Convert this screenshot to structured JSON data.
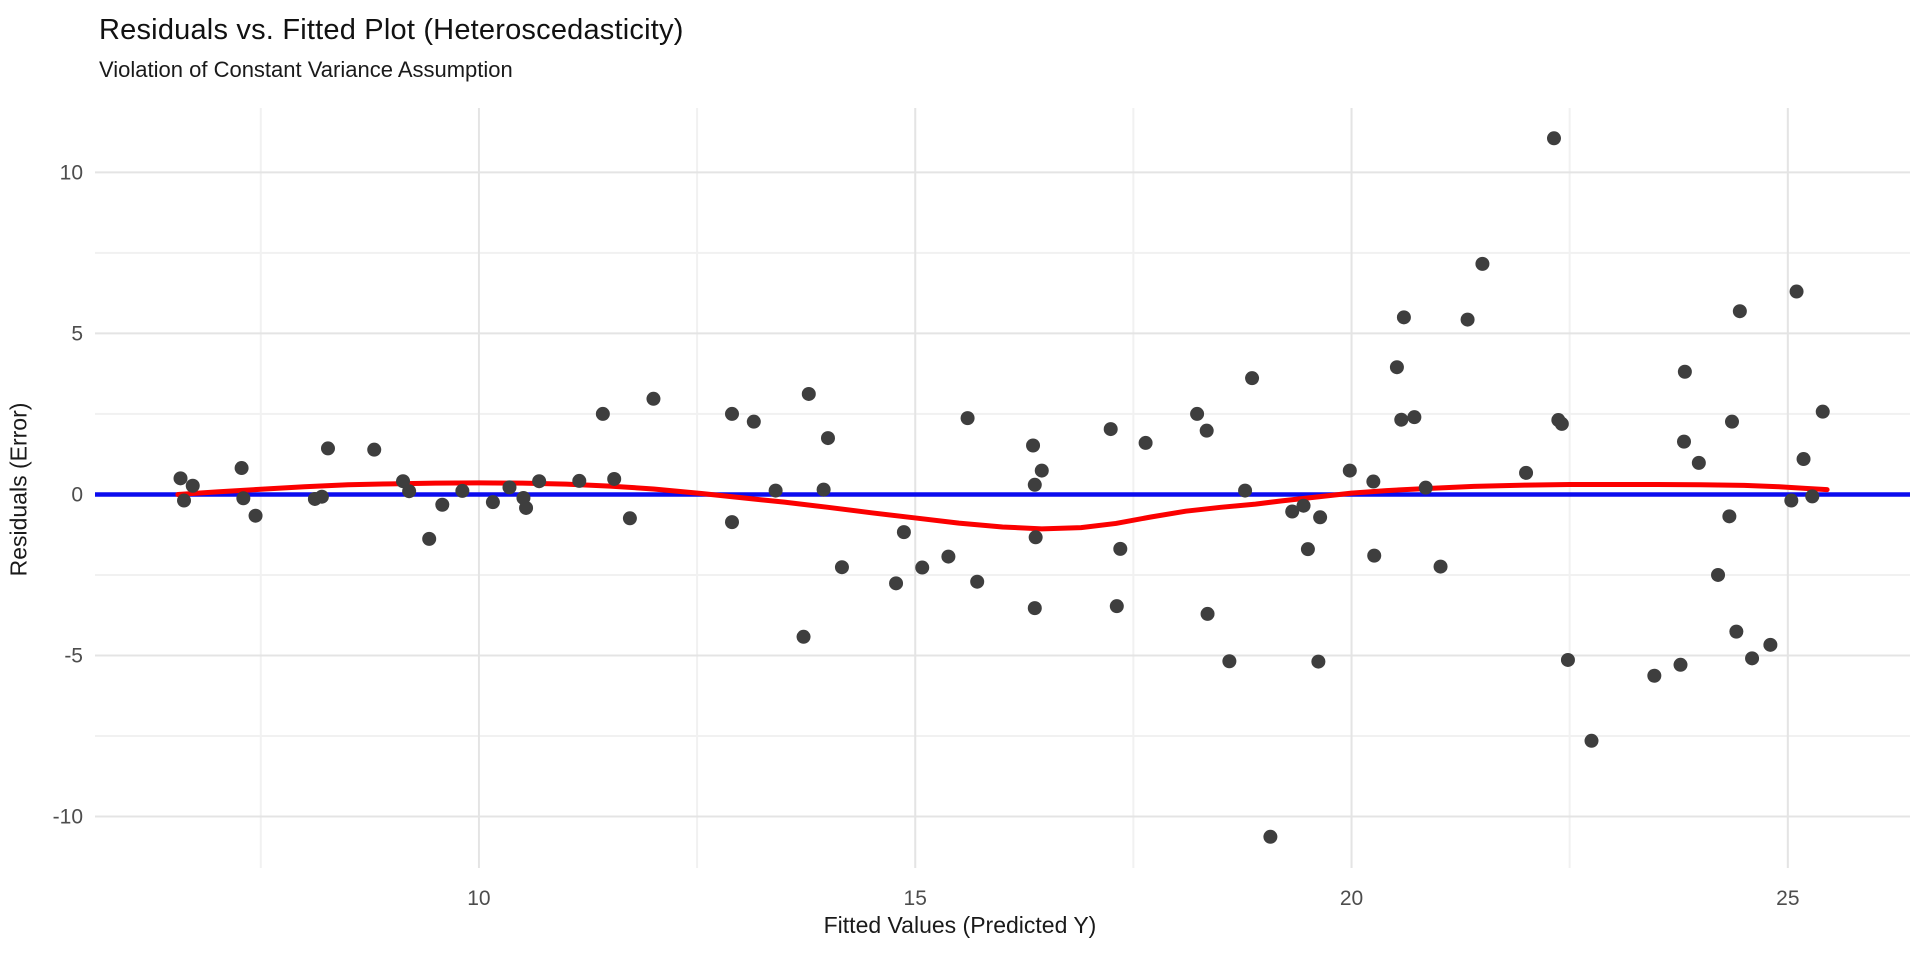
{
  "chart_data": {
    "type": "scatter",
    "title": "Residuals vs. Fitted Plot (Heteroscedasticity)",
    "subtitle": "Violation of Constant Variance Assumption",
    "xlabel": "Fitted Values (Predicted Y)",
    "ylabel": "Residuals (Error)",
    "legend": "none",
    "grid": {
      "major_color": "#e4e4e4",
      "minor_color": "#f1f1f1"
    },
    "tick_label_color": "#4d4d4d",
    "x_axis": {
      "range": [
        5.6,
        26.4
      ],
      "ticks": [
        10,
        15,
        20,
        25
      ],
      "tick_labels": [
        "10",
        "15",
        "20",
        "25"
      ],
      "minor_ticks": [
        7.5,
        12.5,
        17.5,
        22.5
      ]
    },
    "y_axis": {
      "range": [
        -11.6,
        12.0
      ],
      "ticks": [
        -10,
        -5,
        0,
        5,
        10
      ],
      "tick_labels": [
        "-10",
        "-5",
        "0",
        "5",
        "10"
      ],
      "minor_ticks": [
        -7.5,
        -2.5,
        2.5,
        7.5
      ]
    },
    "zero_line": {
      "y": 0,
      "color": "#0b0bee",
      "width": 4.5
    },
    "smooth_line": {
      "color": "#fb0000",
      "width": 5,
      "points": [
        [
          6.55,
          0.0
        ],
        [
          7.0,
          0.08
        ],
        [
          7.5,
          0.16
        ],
        [
          8.0,
          0.24
        ],
        [
          8.5,
          0.3
        ],
        [
          9.0,
          0.33
        ],
        [
          9.5,
          0.35
        ],
        [
          10.0,
          0.36
        ],
        [
          10.5,
          0.35
        ],
        [
          11.0,
          0.32
        ],
        [
          11.5,
          0.26
        ],
        [
          12.0,
          0.17
        ],
        [
          12.55,
          0.03
        ],
        [
          13.0,
          -0.1
        ],
        [
          13.5,
          -0.24
        ],
        [
          14.0,
          -0.4
        ],
        [
          14.5,
          -0.57
        ],
        [
          15.0,
          -0.73
        ],
        [
          15.5,
          -0.89
        ],
        [
          16.0,
          -1.01
        ],
        [
          16.45,
          -1.07
        ],
        [
          16.9,
          -1.03
        ],
        [
          17.3,
          -0.9
        ],
        [
          17.7,
          -0.7
        ],
        [
          18.1,
          -0.52
        ],
        [
          18.5,
          -0.4
        ],
        [
          18.9,
          -0.3
        ],
        [
          19.2,
          -0.2
        ],
        [
          19.6,
          -0.08
        ],
        [
          20.0,
          0.04
        ],
        [
          20.4,
          0.12
        ],
        [
          20.9,
          0.19
        ],
        [
          21.4,
          0.25
        ],
        [
          22.0,
          0.29
        ],
        [
          22.5,
          0.31
        ],
        [
          23.0,
          0.31
        ],
        [
          23.5,
          0.31
        ],
        [
          24.0,
          0.3
        ],
        [
          24.5,
          0.28
        ],
        [
          24.9,
          0.24
        ],
        [
          25.2,
          0.19
        ],
        [
          25.45,
          0.15
        ]
      ]
    },
    "points": {
      "color": "#3e3e3e",
      "radius": 7,
      "data": [
        [
          6.58,
          0.5
        ],
        [
          6.72,
          0.27
        ],
        [
          6.62,
          -0.19
        ],
        [
          7.28,
          0.82
        ],
        [
          7.3,
          -0.12
        ],
        [
          7.44,
          -0.66
        ],
        [
          8.12,
          -0.14
        ],
        [
          8.2,
          -0.07
        ],
        [
          8.27,
          1.43
        ],
        [
          8.8,
          1.39
        ],
        [
          9.13,
          0.41
        ],
        [
          9.2,
          0.1
        ],
        [
          9.43,
          -1.38
        ],
        [
          9.58,
          -0.32
        ],
        [
          9.81,
          0.11
        ],
        [
          10.16,
          -0.24
        ],
        [
          10.35,
          0.22
        ],
        [
          10.51,
          -0.11
        ],
        [
          10.54,
          -0.42
        ],
        [
          10.69,
          0.41
        ],
        [
          11.15,
          0.42
        ],
        [
          11.55,
          0.48
        ],
        [
          11.42,
          2.5
        ],
        [
          12.0,
          2.97
        ],
        [
          11.73,
          -0.74
        ],
        [
          12.9,
          2.5
        ],
        [
          12.9,
          -0.86
        ],
        [
          13.15,
          2.26
        ],
        [
          13.4,
          0.12
        ],
        [
          13.78,
          3.12
        ],
        [
          13.95,
          0.15
        ],
        [
          13.72,
          -4.42
        ],
        [
          14.0,
          1.75
        ],
        [
          14.16,
          -2.26
        ],
        [
          14.78,
          -2.76
        ],
        [
          14.87,
          -1.17
        ],
        [
          15.08,
          -2.27
        ],
        [
          15.38,
          -1.93
        ],
        [
          15.6,
          2.37
        ],
        [
          15.71,
          -2.71
        ],
        [
          16.35,
          1.52
        ],
        [
          16.45,
          0.74
        ],
        [
          16.37,
          0.3
        ],
        [
          16.38,
          -1.33
        ],
        [
          16.37,
          -3.53
        ],
        [
          17.24,
          2.03
        ],
        [
          17.35,
          -1.69
        ],
        [
          17.31,
          -3.47
        ],
        [
          17.64,
          1.6
        ],
        [
          18.23,
          2.5
        ],
        [
          18.34,
          1.98
        ],
        [
          18.35,
          -3.71
        ],
        [
          18.6,
          -5.18
        ],
        [
          18.78,
          0.12
        ],
        [
          18.86,
          3.61
        ],
        [
          19.07,
          -10.63
        ],
        [
          19.32,
          -0.53
        ],
        [
          19.45,
          -0.35
        ],
        [
          19.5,
          -1.7
        ],
        [
          19.64,
          -0.71
        ],
        [
          19.62,
          -5.19
        ],
        [
          19.98,
          0.74
        ],
        [
          20.25,
          0.4
        ],
        [
          20.26,
          -1.9
        ],
        [
          20.52,
          3.95
        ],
        [
          20.57,
          2.32
        ],
        [
          20.6,
          5.5
        ],
        [
          20.72,
          2.4
        ],
        [
          20.85,
          0.21
        ],
        [
          21.02,
          -2.24
        ],
        [
          21.33,
          5.43
        ],
        [
          21.5,
          7.16
        ],
        [
          22.0,
          0.67
        ],
        [
          22.32,
          11.06
        ],
        [
          22.37,
          2.31
        ],
        [
          22.41,
          2.19
        ],
        [
          22.48,
          -5.14
        ],
        [
          22.75,
          -7.65
        ],
        [
          23.47,
          -5.63
        ],
        [
          23.77,
          -5.29
        ],
        [
          23.81,
          1.64
        ],
        [
          23.82,
          3.81
        ],
        [
          23.98,
          0.98
        ],
        [
          24.2,
          -2.5
        ],
        [
          24.33,
          -0.68
        ],
        [
          24.36,
          2.26
        ],
        [
          24.41,
          -4.26
        ],
        [
          24.45,
          5.69
        ],
        [
          24.59,
          -5.09
        ],
        [
          24.8,
          -4.67
        ],
        [
          25.04,
          -0.19
        ],
        [
          25.1,
          6.3
        ],
        [
          25.18,
          1.1
        ],
        [
          25.28,
          -0.06
        ],
        [
          25.4,
          2.57
        ]
      ]
    }
  }
}
